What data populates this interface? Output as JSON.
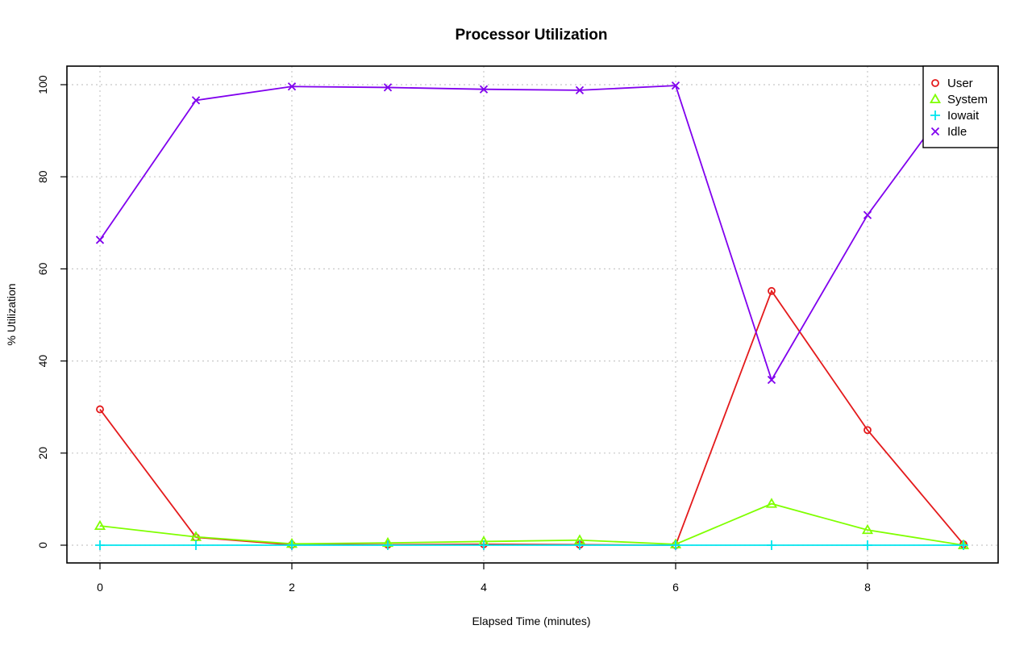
{
  "chart_data": {
    "type": "line",
    "title": "Processor Utilization",
    "xlabel": "Elapsed Time (minutes)",
    "ylabel": "% Utilization",
    "xlim": [
      0,
      9
    ],
    "ylim": [
      0,
      100
    ],
    "x_ticks": [
      0,
      2,
      4,
      6,
      8
    ],
    "y_ticks": [
      0,
      20,
      40,
      60,
      80,
      100
    ],
    "grid": true,
    "legend_position": "top-right",
    "x": [
      0,
      1,
      2,
      3,
      4,
      5,
      6,
      7,
      8,
      9
    ],
    "series": [
      {
        "name": "User",
        "color": "#e41a1c",
        "marker": "circle",
        "values": [
          29.5,
          1.7,
          0.1,
          0.1,
          0.2,
          0.1,
          0.0,
          55.2,
          25.0,
          0.2
        ]
      },
      {
        "name": "System",
        "color": "#7fff00",
        "marker": "triangle",
        "values": [
          4.2,
          1.8,
          0.3,
          0.5,
          0.8,
          1.1,
          0.2,
          9.0,
          3.3,
          0.0
        ]
      },
      {
        "name": "Iowait",
        "color": "#00e5ee",
        "marker": "plus",
        "values": [
          0.0,
          0.0,
          0.0,
          0.0,
          0.0,
          0.0,
          0.0,
          0.0,
          0.0,
          0.0
        ]
      },
      {
        "name": "Idle",
        "color": "#8000ee",
        "marker": "x",
        "values": [
          66.3,
          96.6,
          99.6,
          99.4,
          99.0,
          98.8,
          99.8,
          35.9,
          71.7,
          100.0
        ]
      }
    ]
  }
}
